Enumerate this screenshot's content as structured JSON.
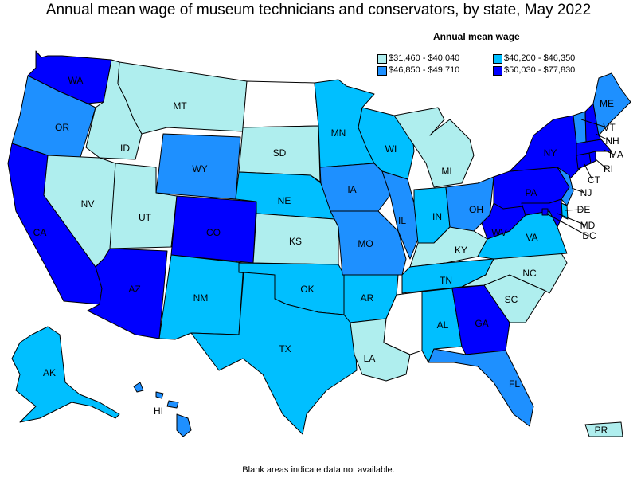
{
  "title": "Annual mean wage of museum technicians and conservators, by state, May 2022",
  "legend": {
    "title": "Annual mean wage",
    "items": [
      {
        "label": "$31,460 - $40,040",
        "color": "#afeeee"
      },
      {
        "label": "$40,200 - $46,350",
        "color": "#00bfff"
      },
      {
        "label": "$46,850 - $49,710",
        "color": "#1e90ff"
      },
      {
        "label": "$50,030 - $77,830",
        "color": "#0000ff"
      }
    ]
  },
  "footnote": "Blank areas indicate data not available.",
  "blank_color": "#ffffff",
  "states": [
    {
      "id": "WA",
      "name": "Washington",
      "label": "WA",
      "bin": 3
    },
    {
      "id": "OR",
      "name": "Oregon",
      "label": "OR",
      "bin": 2
    },
    {
      "id": "CA",
      "name": "California",
      "label": "CA",
      "bin": 3
    },
    {
      "id": "ID",
      "name": "Idaho",
      "label": "ID",
      "bin": 0
    },
    {
      "id": "NV",
      "name": "Nevada",
      "label": "NV",
      "bin": 0
    },
    {
      "id": "MT",
      "name": "Montana",
      "label": "MT",
      "bin": 0
    },
    {
      "id": "WY",
      "name": "Wyoming",
      "label": "WY",
      "bin": 2
    },
    {
      "id": "UT",
      "name": "Utah",
      "label": "UT",
      "bin": 0
    },
    {
      "id": "AZ",
      "name": "Arizona",
      "label": "AZ",
      "bin": 3
    },
    {
      "id": "CO",
      "name": "Colorado",
      "label": "CO",
      "bin": 3
    },
    {
      "id": "NM",
      "name": "New Mexico",
      "label": "NM",
      "bin": 1
    },
    {
      "id": "ND",
      "name": "North Dakota",
      "label": "",
      "bin": null
    },
    {
      "id": "SD",
      "name": "South Dakota",
      "label": "SD",
      "bin": 0
    },
    {
      "id": "NE",
      "name": "Nebraska",
      "label": "NE",
      "bin": 1
    },
    {
      "id": "KS",
      "name": "Kansas",
      "label": "KS",
      "bin": 0
    },
    {
      "id": "OK",
      "name": "Oklahoma",
      "label": "OK",
      "bin": 1
    },
    {
      "id": "TX",
      "name": "Texas",
      "label": "TX",
      "bin": 1
    },
    {
      "id": "MN",
      "name": "Minnesota",
      "label": "MN",
      "bin": 1
    },
    {
      "id": "IA",
      "name": "Iowa",
      "label": "IA",
      "bin": 2
    },
    {
      "id": "MO",
      "name": "Missouri",
      "label": "MO",
      "bin": 2
    },
    {
      "id": "AR",
      "name": "Arkansas",
      "label": "AR",
      "bin": 1
    },
    {
      "id": "LA",
      "name": "Louisiana",
      "label": "LA",
      "bin": 0
    },
    {
      "id": "WI",
      "name": "Wisconsin",
      "label": "WI",
      "bin": 1
    },
    {
      "id": "IL",
      "name": "Illinois",
      "label": "IL",
      "bin": 2
    },
    {
      "id": "MI",
      "name": "Michigan",
      "label": "MI",
      "bin": 0
    },
    {
      "id": "IN",
      "name": "Indiana",
      "label": "IN",
      "bin": 1
    },
    {
      "id": "OH",
      "name": "Ohio",
      "label": "OH",
      "bin": 2
    },
    {
      "id": "KY",
      "name": "Kentucky",
      "label": "KY",
      "bin": 0
    },
    {
      "id": "TN",
      "name": "Tennessee",
      "label": "TN",
      "bin": 1
    },
    {
      "id": "MS",
      "name": "Mississippi",
      "label": "",
      "bin": null
    },
    {
      "id": "AL",
      "name": "Alabama",
      "label": "AL",
      "bin": 1
    },
    {
      "id": "GA",
      "name": "Georgia",
      "label": "GA",
      "bin": 3
    },
    {
      "id": "FL",
      "name": "Florida",
      "label": "FL",
      "bin": 2
    },
    {
      "id": "SC",
      "name": "South Carolina",
      "label": "SC",
      "bin": 0
    },
    {
      "id": "NC",
      "name": "North Carolina",
      "label": "NC",
      "bin": 0
    },
    {
      "id": "VA",
      "name": "Virginia",
      "label": "VA",
      "bin": 1
    },
    {
      "id": "WV",
      "name": "West Virginia",
      "label": "WV",
      "bin": 3
    },
    {
      "id": "PA",
      "name": "Pennsylvania",
      "label": "PA",
      "bin": 3
    },
    {
      "id": "NY",
      "name": "New York",
      "label": "NY",
      "bin": 3
    },
    {
      "id": "VT",
      "name": "Vermont",
      "label": "VT",
      "bin": 2
    },
    {
      "id": "NH",
      "name": "New Hampshire",
      "label": "NH",
      "bin": 3
    },
    {
      "id": "ME",
      "name": "Maine",
      "label": "ME",
      "bin": 2
    },
    {
      "id": "MA",
      "name": "Massachusetts",
      "label": "MA",
      "bin": 3
    },
    {
      "id": "RI",
      "name": "Rhode Island",
      "label": "RI",
      "bin": 3
    },
    {
      "id": "CT",
      "name": "Connecticut",
      "label": "CT",
      "bin": 3
    },
    {
      "id": "NJ",
      "name": "New Jersey",
      "label": "NJ",
      "bin": 2
    },
    {
      "id": "DE",
      "name": "Delaware",
      "label": "DE",
      "bin": 1
    },
    {
      "id": "MD",
      "name": "Maryland",
      "label": "MD",
      "bin": 3
    },
    {
      "id": "DC",
      "name": "District of Columbia",
      "label": "DC",
      "bin": 3
    },
    {
      "id": "AK",
      "name": "Alaska",
      "label": "AK",
      "bin": 1
    },
    {
      "id": "HI",
      "name": "Hawaii",
      "label": "HI",
      "bin": 2
    },
    {
      "id": "PR",
      "name": "Puerto Rico",
      "label": "PR",
      "bin": 0
    }
  ]
}
